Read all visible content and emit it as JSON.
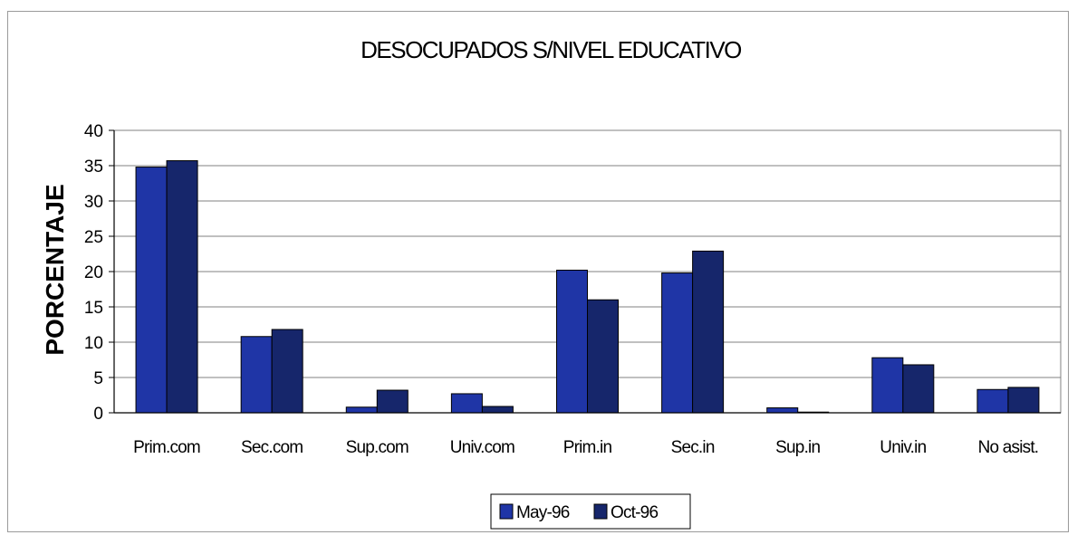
{
  "chart_data": {
    "type": "bar",
    "title": "DESOCUPADOS S/NIVEL EDUCATIVO",
    "ylabel": "PORCENTAJE",
    "xlabel": "",
    "ylim": [
      0,
      40
    ],
    "yticks": [
      0,
      5,
      10,
      15,
      20,
      25,
      30,
      35,
      40
    ],
    "grid": true,
    "legend_position": "bottom",
    "categories": [
      "Prim.com",
      "Sec.com",
      "Sup.com",
      "Univ.com",
      "Prim.in",
      "Sec.in",
      "Sup.in",
      "Univ.in",
      "No asist."
    ],
    "series": [
      {
        "name": "May-96",
        "color": "#1f35a6",
        "values": [
          34.8,
          10.8,
          0.8,
          2.7,
          20.2,
          19.8,
          0.7,
          7.8,
          3.3
        ]
      },
      {
        "name": "Oct-96",
        "color": "#16266b",
        "values": [
          35.7,
          11.8,
          3.2,
          0.9,
          16.0,
          22.9,
          0.1,
          6.8,
          3.6
        ]
      }
    ]
  }
}
